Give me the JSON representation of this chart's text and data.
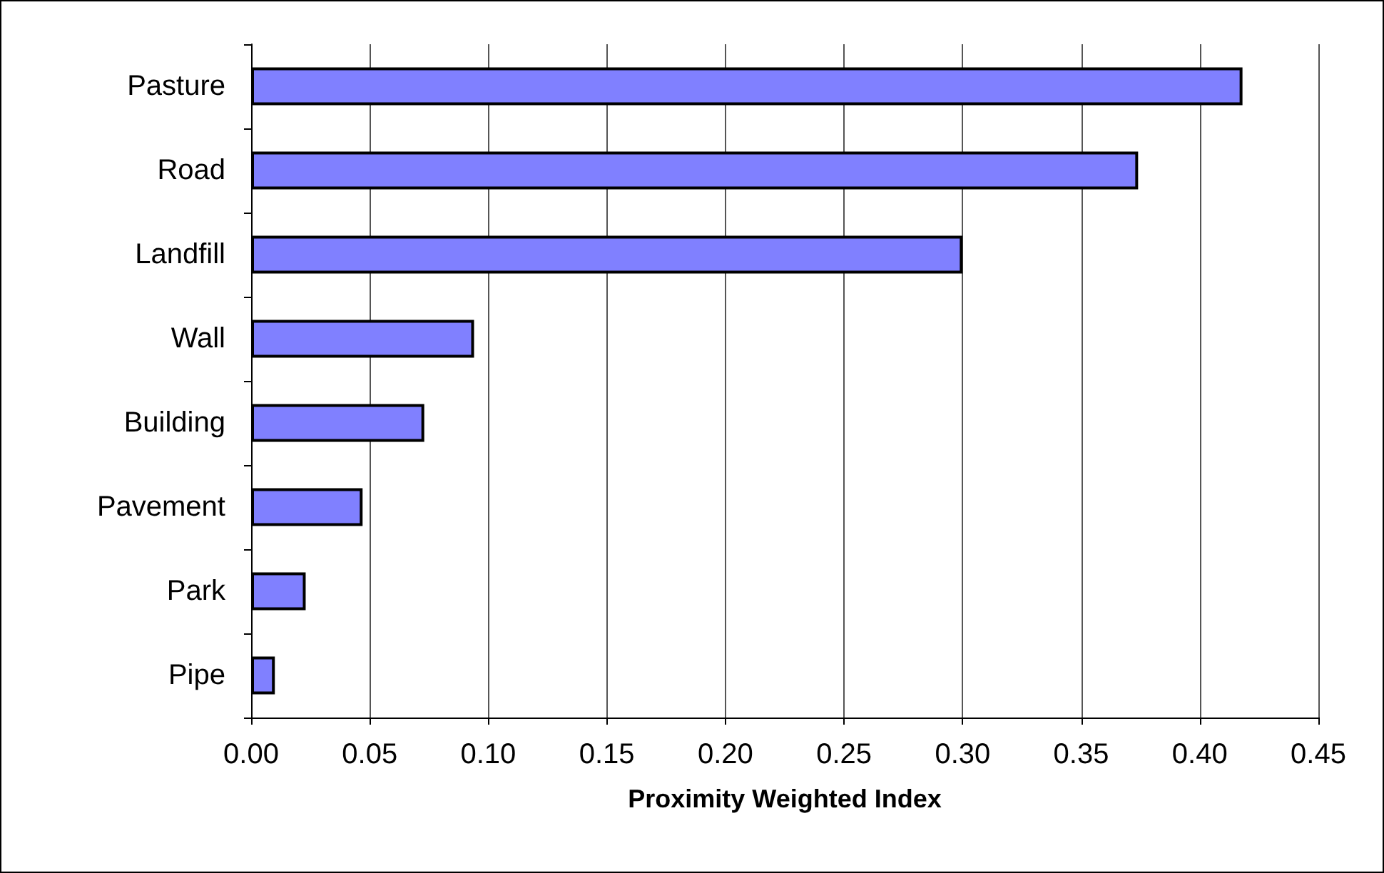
{
  "chart_data": {
    "type": "bar",
    "orientation": "horizontal",
    "xlabel": "Proximity Weighted Index",
    "categories": [
      "Pasture",
      "Road",
      "Landfill",
      "Wall",
      "Building",
      "Pavement",
      "Park",
      "Pipe"
    ],
    "values": [
      0.418,
      0.374,
      0.3,
      0.094,
      0.073,
      0.047,
      0.023,
      0.01
    ],
    "color": "#8080ff",
    "xlim": [
      0,
      0.45
    ],
    "xticks": [
      {
        "value": 0,
        "label": "0.00"
      },
      {
        "value": 0.05,
        "label": "0.05"
      },
      {
        "value": 0.1,
        "label": "0.10"
      },
      {
        "value": 0.15,
        "label": "0.15"
      },
      {
        "value": 0.2,
        "label": "0.20"
      },
      {
        "value": 0.25,
        "label": "0.25"
      },
      {
        "value": 0.3,
        "label": "0.30"
      },
      {
        "value": 0.35,
        "label": "0.35"
      },
      {
        "value": 0.4,
        "label": "0.40"
      },
      {
        "value": 0.45,
        "label": "0.45"
      }
    ],
    "grid": "x"
  }
}
